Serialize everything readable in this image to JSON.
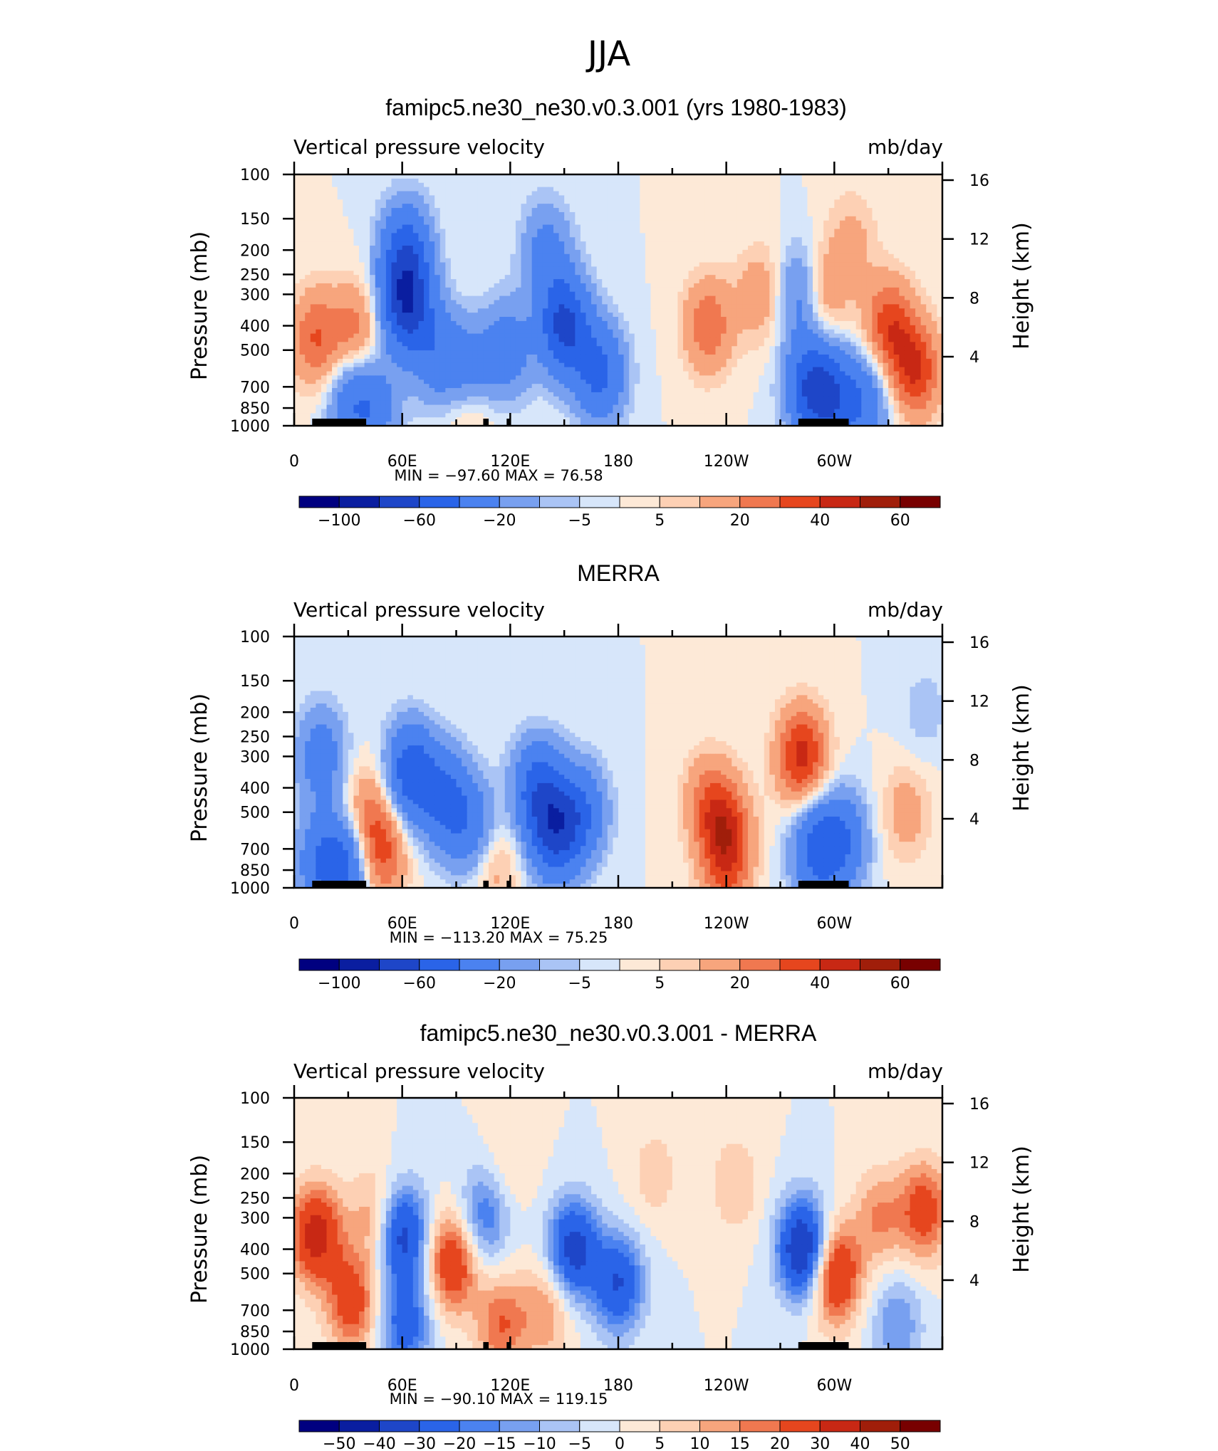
{
  "figure": {
    "title": "JJA"
  },
  "colors": {
    "blue_to_red_14": [
      "#000080",
      "#0a1ea0",
      "#1e46c8",
      "#2a64e8",
      "#4b82f0",
      "#78a0f0",
      "#aac4f5",
      "#d7e6fa",
      "#fde9d7",
      "#fdd0b4",
      "#f7a57d",
      "#f07850",
      "#e6461e",
      "#c82814",
      "#a01e0a",
      "#780000"
    ],
    "panel_bg_hint": [
      "#d7e6fa",
      "#fde9d7"
    ]
  },
  "panels": [
    {
      "title": "famipc5.ne30_ne30.v0.3.001 (yrs 1980-1983)",
      "left_label": "Vertical pressure velocity",
      "right_label": "mb/day",
      "stats": "MIN =   −97.60   MAX =    76.58",
      "colorbar_labels": [
        "−100",
        "−60",
        "−20",
        "−5",
        "5",
        "20",
        "40",
        "60"
      ]
    },
    {
      "title": "MERRA",
      "left_label": "Vertical pressure velocity",
      "right_label": "mb/day",
      "stats": "MIN =  −113.20   MAX =    75.25",
      "colorbar_labels": [
        "−100",
        "−60",
        "−20",
        "−5",
        "5",
        "20",
        "40",
        "60"
      ]
    },
    {
      "title": "famipc5.ne30_ne30.v0.3.001 - MERRA",
      "left_label": "Vertical pressure velocity",
      "right_label": "mb/day",
      "stats": "MIN =   −90.10   MAX =  119.15",
      "colorbar_labels": [
        "−50",
        "−40",
        "−30",
        "−20",
        "−15",
        "−10",
        "−5",
        "0",
        "5",
        "10",
        "15",
        "20",
        "30",
        "40",
        "50"
      ]
    }
  ],
  "chart_data": [
    {
      "type": "heatmap",
      "title": "famipc5.ne30_ne30.v0.3.001 (yrs 1980-1983)",
      "xlabel": "",
      "ylabel": "Pressure (mb)",
      "y2label": "Height (km)",
      "x_ticks": [
        "0",
        "60E",
        "120E",
        "180",
        "120W",
        "60W"
      ],
      "x_tick_values": [
        0,
        60,
        120,
        180,
        240,
        300
      ],
      "xlim": [
        0,
        360
      ],
      "y_ticks": [
        "100",
        "150",
        "200",
        "250",
        "300",
        "400",
        "500",
        "700",
        "850",
        "1000"
      ],
      "y_tick_values": [
        100,
        150,
        200,
        250,
        300,
        400,
        500,
        700,
        850,
        1000
      ],
      "ylim": [
        1000,
        100
      ],
      "y_scale": "log",
      "y2_ticks": [
        "4",
        "8",
        "12",
        "16"
      ],
      "y2_tick_values": [
        4,
        8,
        12,
        16
      ],
      "min": -97.6,
      "max": 76.58,
      "contour_levels": [
        -100,
        -80,
        -60,
        -40,
        -20,
        -10,
        -5,
        0,
        5,
        10,
        20,
        30,
        40,
        50,
        60
      ],
      "anomalies": [
        {
          "lon": 12,
          "p": 450,
          "val": 30
        },
        {
          "lon": 35,
          "p": 420,
          "val": 25
        },
        {
          "lon": 32,
          "p": 800,
          "val": -30
        },
        {
          "lon": 45,
          "p": 850,
          "val": -25
        },
        {
          "lon": 62,
          "p": 330,
          "val": -70
        },
        {
          "lon": 62,
          "p": 200,
          "val": -45
        },
        {
          "lon": 80,
          "p": 520,
          "val": -30
        },
        {
          "lon": 98,
          "p": 620,
          "val": -25
        },
        {
          "lon": 98,
          "p": 880,
          "val": 15
        },
        {
          "lon": 118,
          "p": 500,
          "val": -30
        },
        {
          "lon": 150,
          "p": 400,
          "val": -65
        },
        {
          "lon": 170,
          "p": 620,
          "val": -45
        },
        {
          "lon": 140,
          "p": 200,
          "val": -25
        },
        {
          "lon": 230,
          "p": 400,
          "val": 28
        },
        {
          "lon": 260,
          "p": 300,
          "val": 18
        },
        {
          "lon": 287,
          "p": 700,
          "val": -55
        },
        {
          "lon": 282,
          "p": 300,
          "val": -35
        },
        {
          "lon": 300,
          "p": 800,
          "val": -40
        },
        {
          "lon": 318,
          "p": 800,
          "val": -30
        },
        {
          "lon": 292,
          "p": 300,
          "val": 28
        },
        {
          "lon": 330,
          "p": 400,
          "val": 35
        },
        {
          "lon": 345,
          "p": 600,
          "val": 40
        },
        {
          "lon": 310,
          "p": 180,
          "val": 12
        }
      ]
    },
    {
      "type": "heatmap",
      "title": "MERRA",
      "xlabel": "",
      "ylabel": "Pressure (mb)",
      "y2label": "Height (km)",
      "x_ticks": [
        "0",
        "60E",
        "120E",
        "180",
        "120W",
        "60W"
      ],
      "x_tick_values": [
        0,
        60,
        120,
        180,
        240,
        300
      ],
      "xlim": [
        0,
        360
      ],
      "y_ticks": [
        "100",
        "150",
        "200",
        "250",
        "300",
        "400",
        "500",
        "700",
        "850",
        "1000"
      ],
      "y_tick_values": [
        100,
        150,
        200,
        250,
        300,
        400,
        500,
        700,
        850,
        1000
      ],
      "ylim": [
        1000,
        100
      ],
      "y_scale": "log",
      "y2_ticks": [
        "4",
        "8",
        "12",
        "16"
      ],
      "y2_tick_values": [
        4,
        8,
        12,
        16
      ],
      "min": -113.2,
      "max": 75.25,
      "contour_levels": [
        -100,
        -80,
        -60,
        -40,
        -20,
        -10,
        -5,
        0,
        5,
        10,
        20,
        30,
        40,
        50,
        60
      ],
      "anomalies": [
        {
          "lon": 15,
          "p": 300,
          "val": -30
        },
        {
          "lon": 15,
          "p": 800,
          "val": -35
        },
        {
          "lon": 40,
          "p": 500,
          "val": 20
        },
        {
          "lon": 48,
          "p": 720,
          "val": 35
        },
        {
          "lon": 30,
          "p": 800,
          "val": -40
        },
        {
          "lon": 65,
          "p": 350,
          "val": -55
        },
        {
          "lon": 85,
          "p": 450,
          "val": -40
        },
        {
          "lon": 100,
          "p": 600,
          "val": -30
        },
        {
          "lon": 110,
          "p": 800,
          "val": 18
        },
        {
          "lon": 135,
          "p": 400,
          "val": -45
        },
        {
          "lon": 145,
          "p": 600,
          "val": -60
        },
        {
          "lon": 160,
          "p": 500,
          "val": -35
        },
        {
          "lon": 230,
          "p": 450,
          "val": 22
        },
        {
          "lon": 240,
          "p": 580,
          "val": 30
        },
        {
          "lon": 240,
          "p": 850,
          "val": 25
        },
        {
          "lon": 282,
          "p": 300,
          "val": 45
        },
        {
          "lon": 290,
          "p": 700,
          "val": -45
        },
        {
          "lon": 305,
          "p": 650,
          "val": -35
        },
        {
          "lon": 340,
          "p": 500,
          "val": 15
        },
        {
          "lon": 350,
          "p": 200,
          "val": -8
        }
      ]
    },
    {
      "type": "heatmap",
      "title": "famipc5.ne30_ne30.v0.3.001 - MERRA",
      "xlabel": "",
      "ylabel": "Pressure (mb)",
      "y2label": "Height (km)",
      "x_ticks": [
        "0",
        "60E",
        "120E",
        "180",
        "120W",
        "60W"
      ],
      "x_tick_values": [
        0,
        60,
        120,
        180,
        240,
        300
      ],
      "xlim": [
        0,
        360
      ],
      "y_ticks": [
        "100",
        "150",
        "200",
        "250",
        "300",
        "400",
        "500",
        "700",
        "850",
        "1000"
      ],
      "y_tick_values": [
        100,
        150,
        200,
        250,
        300,
        400,
        500,
        700,
        850,
        1000
      ],
      "ylim": [
        1000,
        100
      ],
      "y_scale": "log",
      "y2_ticks": [
        "4",
        "8",
        "12",
        "16"
      ],
      "y2_tick_values": [
        4,
        8,
        12,
        16
      ],
      "min": -90.1,
      "max": 119.15,
      "contour_levels": [
        -50,
        -40,
        -30,
        -20,
        -15,
        -10,
        -5,
        0,
        5,
        10,
        15,
        20,
        30,
        40,
        50
      ],
      "anomalies": [
        {
          "lon": 12,
          "p": 350,
          "val": 35
        },
        {
          "lon": 32,
          "p": 650,
          "val": 25
        },
        {
          "lon": 45,
          "p": 300,
          "val": 15
        },
        {
          "lon": 60,
          "p": 350,
          "val": -35
        },
        {
          "lon": 62,
          "p": 800,
          "val": -25
        },
        {
          "lon": 88,
          "p": 450,
          "val": 30
        },
        {
          "lon": 105,
          "p": 300,
          "val": -20
        },
        {
          "lon": 115,
          "p": 800,
          "val": 20
        },
        {
          "lon": 140,
          "p": 700,
          "val": 15
        },
        {
          "lon": 155,
          "p": 400,
          "val": -35
        },
        {
          "lon": 180,
          "p": 550,
          "val": -30
        },
        {
          "lon": 200,
          "p": 200,
          "val": 8
        },
        {
          "lon": 245,
          "p": 220,
          "val": 10
        },
        {
          "lon": 283,
          "p": 400,
          "val": -45
        },
        {
          "lon": 300,
          "p": 500,
          "val": 35
        },
        {
          "lon": 325,
          "p": 300,
          "val": 15
        },
        {
          "lon": 350,
          "p": 280,
          "val": 25
        },
        {
          "lon": 335,
          "p": 800,
          "val": -15
        },
        {
          "lon": 120,
          "p": 180,
          "val": 6
        }
      ]
    }
  ]
}
